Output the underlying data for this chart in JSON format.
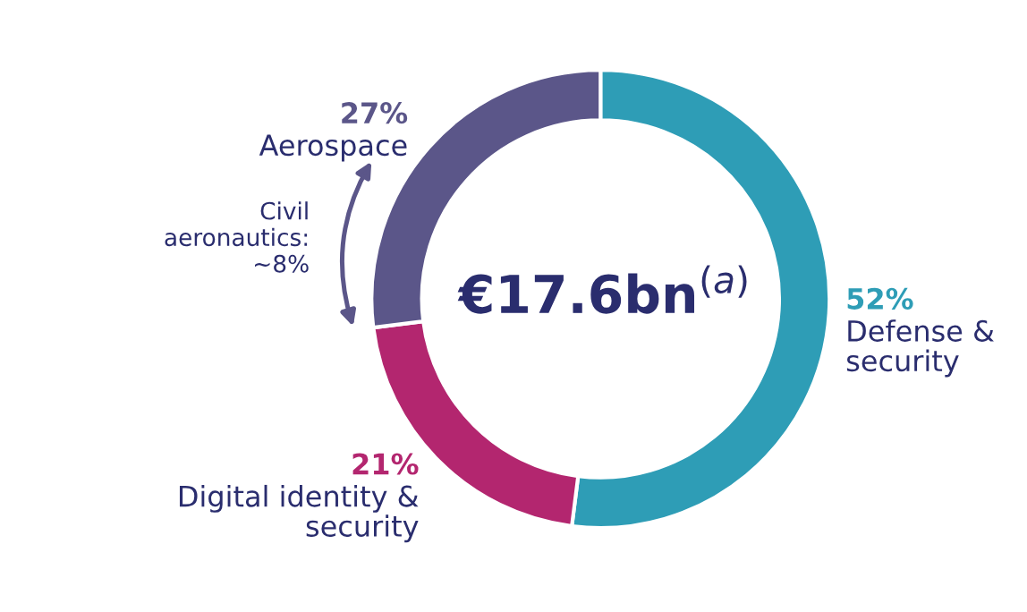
{
  "chart_data": {
    "type": "donut",
    "categories": [
      "Defense &\nsecurity",
      "Digital identity &\nsecurity",
      "Aerospace"
    ],
    "values": [
      52,
      21,
      27
    ],
    "value_labels": [
      "52%",
      "21%",
      "27%"
    ],
    "colors": [
      "#2e9db6",
      "#b3266f",
      "#5b5689"
    ],
    "annotations": [
      "€17.6bn$^{(a)}$",
      "Civil\naeronautics:\n~8%"
    ]
  }
}
